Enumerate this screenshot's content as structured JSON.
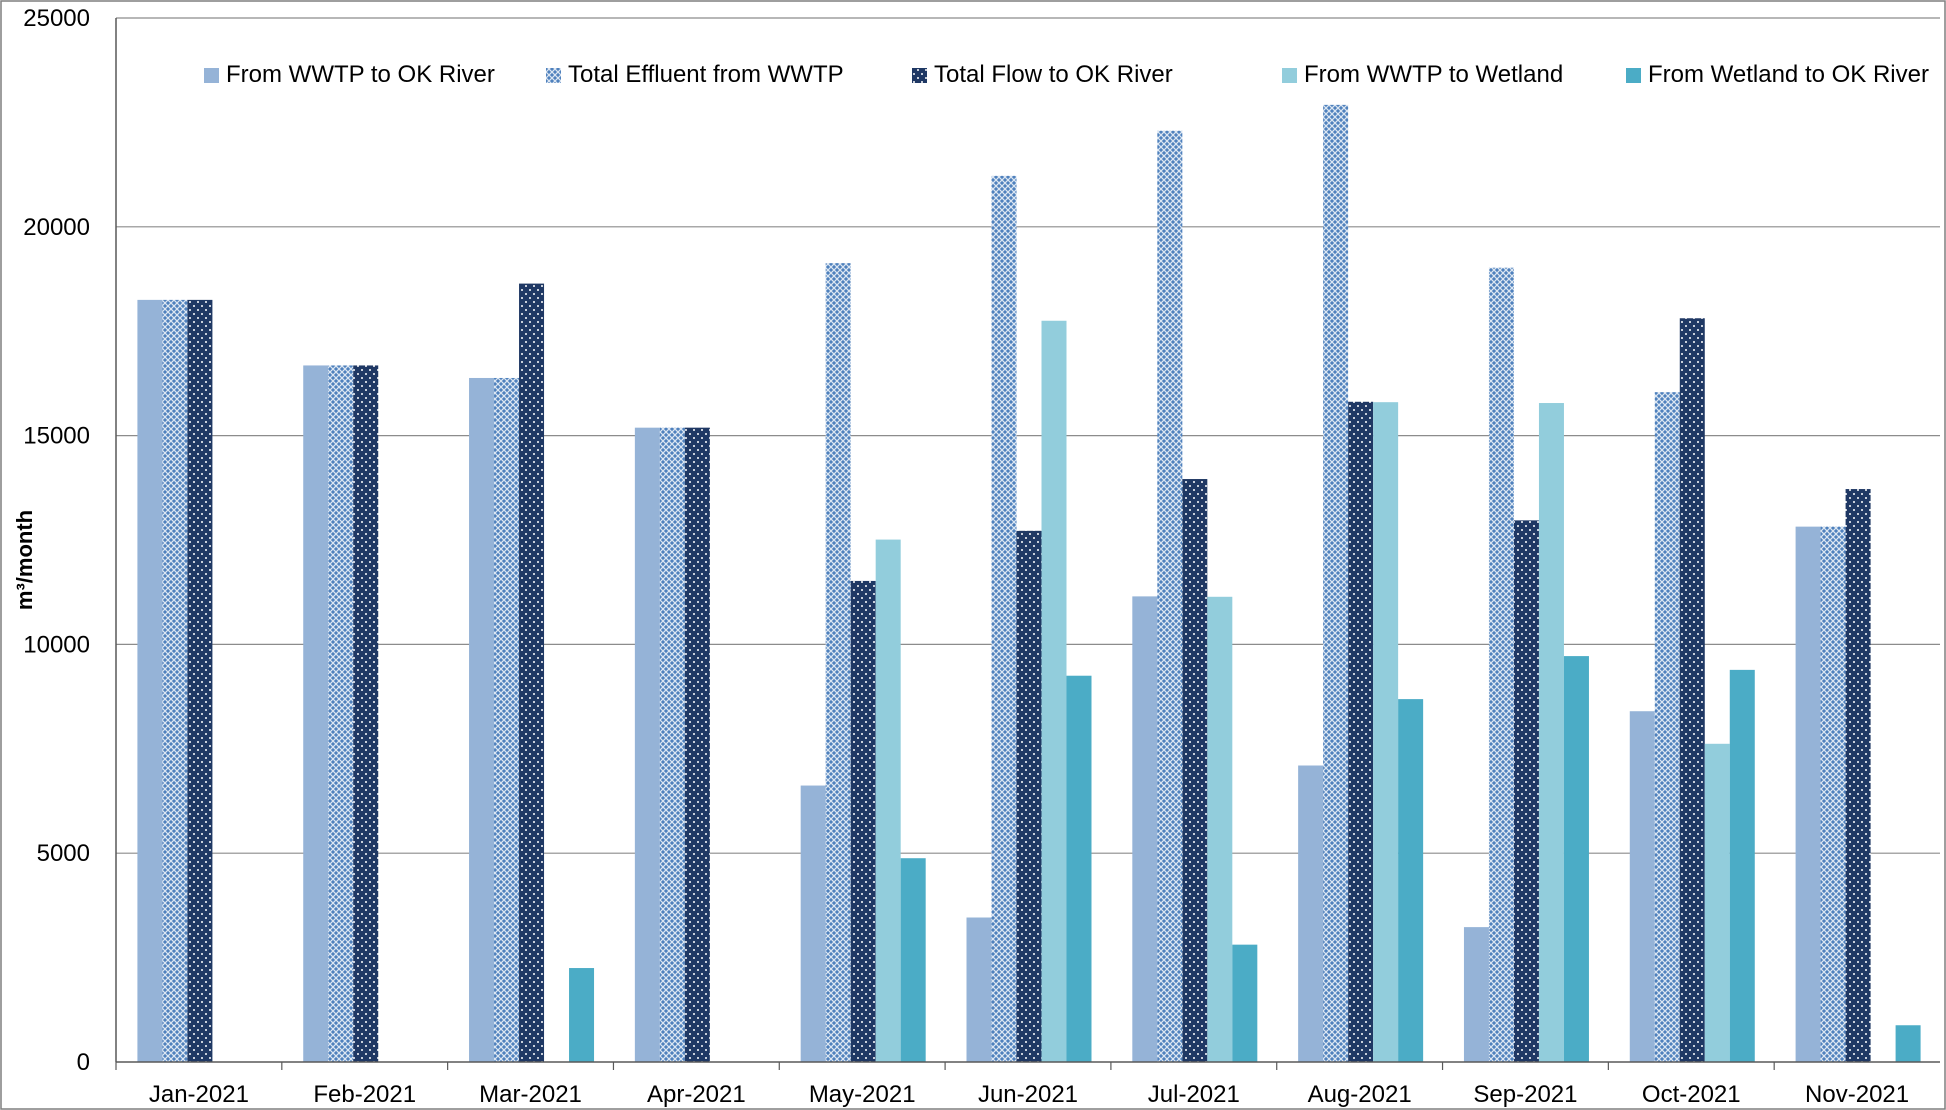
{
  "chart_data": {
    "type": "bar",
    "title": "",
    "xlabel": "",
    "ylabel": "m³/month",
    "ylim": [
      0,
      25000
    ],
    "yticks": [
      0,
      5000,
      10000,
      15000,
      20000,
      25000
    ],
    "grid": true,
    "legend_position": "top",
    "categories": [
      "Jan-2021",
      "Feb-2021",
      "Mar-2021",
      "Apr-2021",
      "May-2021",
      "Jun-2021",
      "Jul-2021",
      "Aug-2021",
      "Sep-2021",
      "Oct-2021",
      "Nov-2021"
    ],
    "series": [
      {
        "name": "From WWTP to OK River",
        "color": "#95b3d7",
        "pattern": "solid",
        "values": [
          18250,
          16680,
          16380,
          15190,
          6620,
          3460,
          11150,
          7100,
          3230,
          8400,
          12820
        ]
      },
      {
        "name": "Total Effluent from WWTP",
        "color": "#4f81bd",
        "pattern": "crosshatch",
        "values": [
          18250,
          16680,
          16380,
          15190,
          19130,
          21220,
          22300,
          22920,
          19020,
          16040,
          12820
        ]
      },
      {
        "name": "Total Flow to OK River",
        "color": "#1f3864",
        "pattern": "dots",
        "values": [
          18250,
          16680,
          18640,
          15190,
          11520,
          12720,
          13960,
          15810,
          12970,
          17810,
          13720
        ]
      },
      {
        "name": "From WWTP to Wetland",
        "color": "#92cddc",
        "pattern": "solid",
        "values": [
          0,
          0,
          0,
          0,
          12510,
          17750,
          11140,
          15800,
          15780,
          7620,
          0
        ]
      },
      {
        "name": "From Wetland to OK River",
        "color": "#4bacc6",
        "pattern": "solid",
        "values": [
          0,
          0,
          2250,
          0,
          4880,
          9250,
          2810,
          8690,
          9720,
          9390,
          880
        ]
      }
    ]
  }
}
